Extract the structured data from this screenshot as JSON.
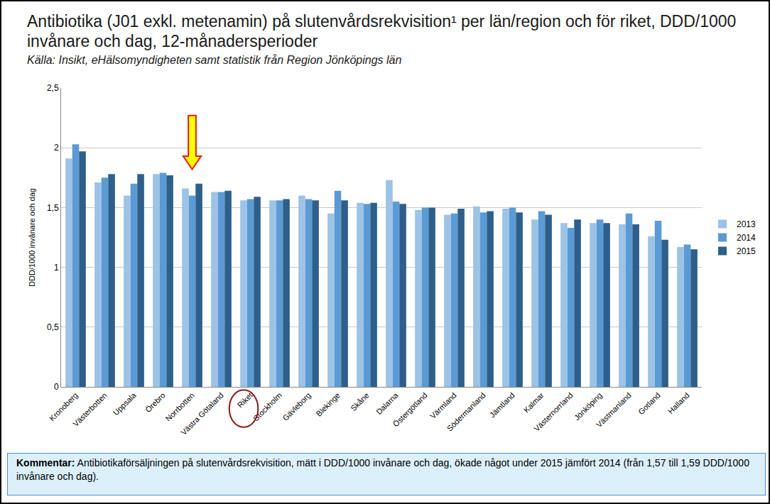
{
  "chart_data": {
    "type": "bar",
    "title": "Antibiotika (J01 exkl. metenamin) på slutenvårdsrekvisition¹ per län/region och för riket, DDD/1000 invånare och dag, 12-månadersperioder",
    "subtitle": "Källa: Insikt, eHälsomyndigheten samt statistik från Region Jönköpings län",
    "y_label": "DDD/1000 invånare och dag",
    "comment_label": "Kommentar:",
    "comment": "Antibiotikaförsäljningen på slutenvårdsrekvisition, mätt i DDD/1000 invånare och dag, ökade något under 2015 jämfört 2014 (från 1,57 till 1,59 DDD/1000 invånare och dag).",
    "categories": [
      "Kronoberg",
      "Västerbotten",
      "Uppsala",
      "Örebro",
      "Norrbotten",
      "Västra Götaland",
      "Riket",
      "Stockholm",
      "Gävleborg",
      "Blekinge",
      "Skåne",
      "Dalarna",
      "Östergötland",
      "Värmland",
      "Södermanland",
      "Jämtland",
      "Kalmar",
      "Västernorrland",
      "Jönköping",
      "Västmanland",
      "Gotland",
      "Halland"
    ],
    "series": [
      {
        "name": "2013",
        "color": "#9dc3e6",
        "values": [
          1.91,
          1.71,
          1.6,
          1.78,
          1.66,
          1.63,
          1.56,
          1.56,
          1.6,
          1.45,
          1.54,
          1.73,
          1.48,
          1.44,
          1.51,
          1.49,
          1.4,
          1.37,
          1.37,
          1.36,
          1.26,
          1.17
        ]
      },
      {
        "name": "2014",
        "color": "#5b9bd5",
        "values": [
          2.03,
          1.75,
          1.7,
          1.79,
          1.6,
          1.63,
          1.57,
          1.56,
          1.57,
          1.64,
          1.53,
          1.55,
          1.5,
          1.45,
          1.46,
          1.5,
          1.47,
          1.33,
          1.4,
          1.45,
          1.39,
          1.19
        ]
      },
      {
        "name": "2015",
        "color": "#2e5f8a",
        "values": [
          1.97,
          1.78,
          1.78,
          1.77,
          1.7,
          1.64,
          1.59,
          1.57,
          1.56,
          1.56,
          1.54,
          1.53,
          1.5,
          1.49,
          1.47,
          1.46,
          1.44,
          1.4,
          1.37,
          1.36,
          1.23,
          1.15
        ]
      }
    ],
    "ylim": [
      0,
      2.5
    ],
    "yticks": [
      0,
      {
        "value": 0.5,
        "label": "0,5"
      },
      1,
      {
        "value": 1.5,
        "label": "1,5"
      },
      2,
      {
        "value": 2.5,
        "label": "2,5"
      }
    ],
    "grid": true,
    "legend": "right"
  }
}
